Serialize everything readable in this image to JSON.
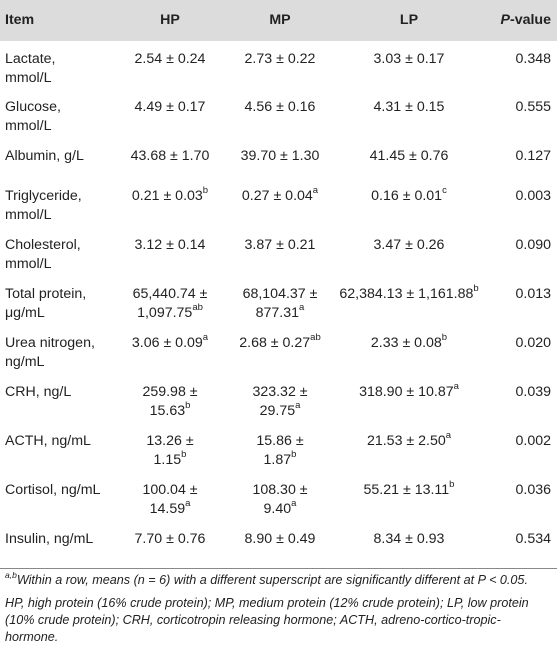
{
  "table": {
    "headers": {
      "item": "Item",
      "hp": "HP",
      "mp": "MP",
      "lp": "LP",
      "p_italic": "P",
      "p_rest": "-value"
    },
    "rows": [
      {
        "item": [
          "Lactate,",
          "mmol/L"
        ],
        "hp": [
          {
            "t": "2.54 ± 0.24"
          }
        ],
        "mp": [
          {
            "t": "2.73 ± 0.22"
          }
        ],
        "lp": [
          {
            "t": "3.03 ± 0.17"
          }
        ],
        "p": "0.348"
      },
      {
        "item": [
          "Glucose,",
          "mmol/L"
        ],
        "hp": [
          {
            "t": "4.49 ± 0.17"
          }
        ],
        "mp": [
          {
            "t": "4.56 ± 0.16"
          }
        ],
        "lp": [
          {
            "t": "4.31 ± 0.15"
          }
        ],
        "p": "0.555"
      },
      {
        "item": [
          "Albumin, g/L"
        ],
        "hp": [
          {
            "t": "43.68 ± 1.70"
          }
        ],
        "mp": [
          {
            "t": "39.70 ± 1.30"
          }
        ],
        "lp": [
          {
            "t": "41.45 ± 0.76"
          }
        ],
        "p": "0.127"
      },
      {
        "item": [
          "Triglyceride,",
          "mmol/L"
        ],
        "hp": [
          {
            "t": "0.21 ± 0.03",
            "s": "b"
          }
        ],
        "mp": [
          {
            "t": "0.27 ± 0.04",
            "s": "a"
          }
        ],
        "lp": [
          {
            "t": "0.16 ± 0.01",
            "s": "c"
          }
        ],
        "p": "0.003"
      },
      {
        "item": [
          "Cholesterol,",
          "mmol/L"
        ],
        "hp": [
          {
            "t": "3.12 ± 0.14"
          }
        ],
        "mp": [
          {
            "t": "3.87 ± 0.21"
          }
        ],
        "lp": [
          {
            "t": "3.47 ± 0.26"
          }
        ],
        "p": "0.090"
      },
      {
        "item": [
          "Total protein,",
          "μg/mL"
        ],
        "hp": [
          {
            "t": "65,440.74 ±"
          },
          {
            "t": "1,097.75",
            "s": "ab"
          }
        ],
        "mp": [
          {
            "t": "68,104.37 ±"
          },
          {
            "t": "877.31",
            "s": "a"
          }
        ],
        "lp": [
          {
            "t": "62,384.13 ± 1,161.88",
            "s": "b"
          }
        ],
        "p": "0.013"
      },
      {
        "item": [
          "Urea nitrogen,",
          "ng/mL"
        ],
        "hp": [
          {
            "t": "3.06 ± 0.09",
            "s": "a"
          }
        ],
        "mp": [
          {
            "t": "2.68 ± 0.27",
            "s": "ab"
          }
        ],
        "lp": [
          {
            "t": "2.33 ± 0.08",
            "s": "b"
          }
        ],
        "p": "0.020"
      },
      {
        "item": [
          "CRH, ng/L"
        ],
        "hp": [
          {
            "t": "259.98 ±"
          },
          {
            "t": "15.63",
            "s": "b"
          }
        ],
        "mp": [
          {
            "t": "323.32 ±"
          },
          {
            "t": "29.75",
            "s": "a"
          }
        ],
        "lp": [
          {
            "t": "318.90 ± 10.87",
            "s": "a"
          }
        ],
        "p": "0.039"
      },
      {
        "item": [
          "ACTH, ng/mL"
        ],
        "hp": [
          {
            "t": "13.26 ±"
          },
          {
            "t": "1.15",
            "s": "b"
          }
        ],
        "mp": [
          {
            "t": "15.86 ±"
          },
          {
            "t": "1.87",
            "s": "b"
          }
        ],
        "lp": [
          {
            "t": "21.53 ± 2.50",
            "s": "a"
          }
        ],
        "p": "0.002"
      },
      {
        "item": [
          "Cortisol, ng/mL"
        ],
        "hp": [
          {
            "t": "100.04 ±"
          },
          {
            "t": "14.59",
            "s": "a"
          }
        ],
        "mp": [
          {
            "t": "108.30 ±"
          },
          {
            "t": "9.40",
            "s": "a"
          }
        ],
        "lp": [
          {
            "t": "55.21 ± 13.11",
            "s": "b"
          }
        ],
        "p": "0.036"
      },
      {
        "item": [
          "Insulin, ng/mL"
        ],
        "hp": [
          {
            "t": "7.70 ± 0.76"
          }
        ],
        "mp": [
          {
            "t": "8.90 ± 0.49"
          }
        ],
        "lp": [
          {
            "t": "8.34 ± 0.93"
          }
        ],
        "p": "0.534"
      }
    ]
  },
  "footnotes": {
    "sig_sup": "a,b",
    "sig_text": "Within a row, means (n = 6) with a different superscript are significantly different at P < 0.05.",
    "abbrev_text": "HP, high protein (16% crude protein); MP, medium protein (12% crude protein); LP, low protein (10% crude protein); CRH, corticotropin releasing hormone; ACTH, adreno-cortico-tropic-hormone."
  }
}
